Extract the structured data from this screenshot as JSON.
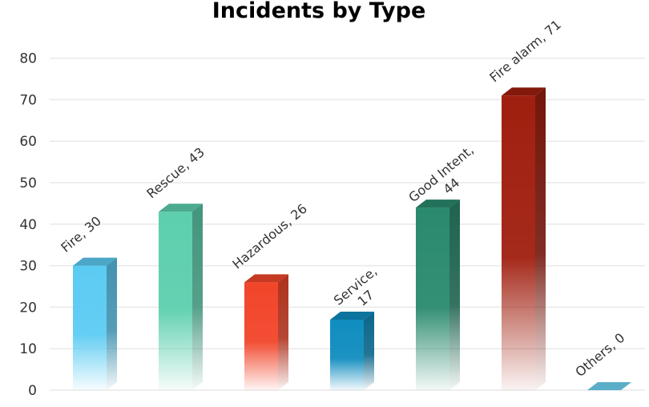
{
  "chart_data": {
    "type": "bar",
    "title": "Incidents by Type",
    "xlabel": "",
    "ylabel": "",
    "ylim": [
      0,
      80
    ],
    "yticks": [
      0,
      10,
      20,
      30,
      40,
      50,
      60,
      70,
      80
    ],
    "grid": true,
    "legend": "none",
    "categories": [
      "Fire",
      "Rescue",
      "Hazardous",
      "Service",
      "Good Intent",
      "Fire alarm",
      "Others"
    ],
    "values": [
      30,
      43,
      26,
      17,
      44,
      71,
      0
    ],
    "data_labels": [
      [
        "Fire, 30"
      ],
      [
        "Rescue, 43"
      ],
      [
        "Hazardous, 26"
      ],
      [
        "Service,",
        "17"
      ],
      [
        "Good Intent,",
        "44"
      ],
      [
        "Fire alarm, 71"
      ],
      [
        "Others, 0"
      ]
    ],
    "colors": [
      "#5ccbf3",
      "#5dcfae",
      "#f2452a",
      "#0f8dbf",
      "#2a8a6e",
      "#a01f0f",
      "#5aaec8"
    ]
  }
}
